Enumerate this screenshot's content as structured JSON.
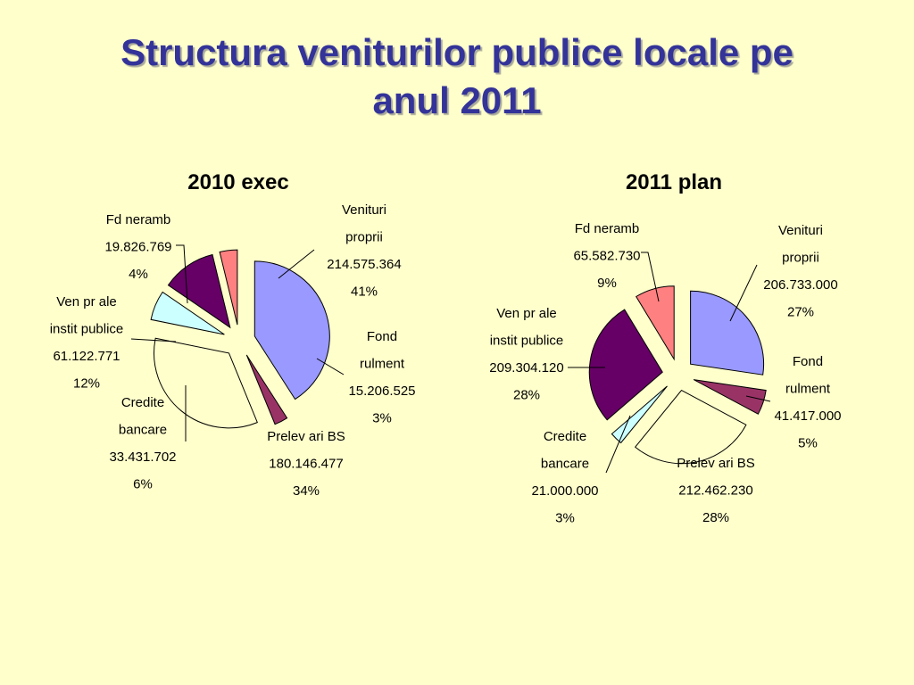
{
  "slide": {
    "title_line1": "Structura veniturilor publice locale pe",
    "title_line2": "anul 2011"
  },
  "colors": {
    "Venituri proprii": "#9999ff",
    "Fond rulment": "#993366",
    "Prelevari BS": "#ffffcc",
    "Credite bancare": "#ccffff",
    "Ven pr ale instit publice": "#660066",
    "Fd neramb": "#ff8080"
  },
  "chart_data": [
    {
      "type": "pie",
      "title": "2010 exec",
      "slices": [
        {
          "name": "Venituri proprii",
          "label_lines": [
            "Venituri",
            "proprii",
            "214.575.364",
            "41%"
          ],
          "value": 214575364,
          "percent": 41
        },
        {
          "name": "Fond rulment",
          "label_lines": [
            "Fond",
            "rulment",
            "15.206.525",
            "3%"
          ],
          "value": 15206525,
          "percent": 3
        },
        {
          "name": "Prelevari BS",
          "label_lines": [
            "Prelev ari BS",
            "180.146.477",
            "34%"
          ],
          "value": 180146477,
          "percent": 34
        },
        {
          "name": "Credite bancare",
          "label_lines": [
            "Credite",
            "bancare",
            "33.431.702",
            "6%"
          ],
          "value": 33431702,
          "percent": 6
        },
        {
          "name": "Ven pr ale instit publice",
          "label_lines": [
            "Ven pr ale",
            "instit publice",
            "61.122.771",
            "12%"
          ],
          "value": 61122771,
          "percent": 12
        },
        {
          "name": "Fd neramb",
          "label_lines": [
            "Fd neramb",
            "19.826.769",
            "4%"
          ],
          "value": 19826769,
          "percent": 4
        }
      ]
    },
    {
      "type": "pie",
      "title": "2011 plan",
      "slices": [
        {
          "name": "Venituri proprii",
          "label_lines": [
            "Venituri",
            "proprii",
            "206.733.000",
            "27%"
          ],
          "value": 206733000,
          "percent": 27
        },
        {
          "name": "Fond rulment",
          "label_lines": [
            "Fond",
            "rulment",
            "41.417.000",
            "5%"
          ],
          "value": 41417000,
          "percent": 5
        },
        {
          "name": "Prelevari BS",
          "label_lines": [
            "Prelev ari BS",
            "212.462.230",
            "28%"
          ],
          "value": 212462230,
          "percent": 28
        },
        {
          "name": "Credite bancare",
          "label_lines": [
            "Credite",
            "bancare",
            "21.000.000",
            "3%"
          ],
          "value": 21000000,
          "percent": 3
        },
        {
          "name": "Ven pr ale instit publice",
          "label_lines": [
            "Ven pr ale",
            "instit publice",
            "209.304.120",
            "28%"
          ],
          "value": 209304120,
          "percent": 28
        },
        {
          "name": "Fd neramb",
          "label_lines": [
            "Fd neramb",
            "65.582.730",
            "9%"
          ],
          "value": 65582730,
          "percent": 9
        }
      ]
    }
  ]
}
